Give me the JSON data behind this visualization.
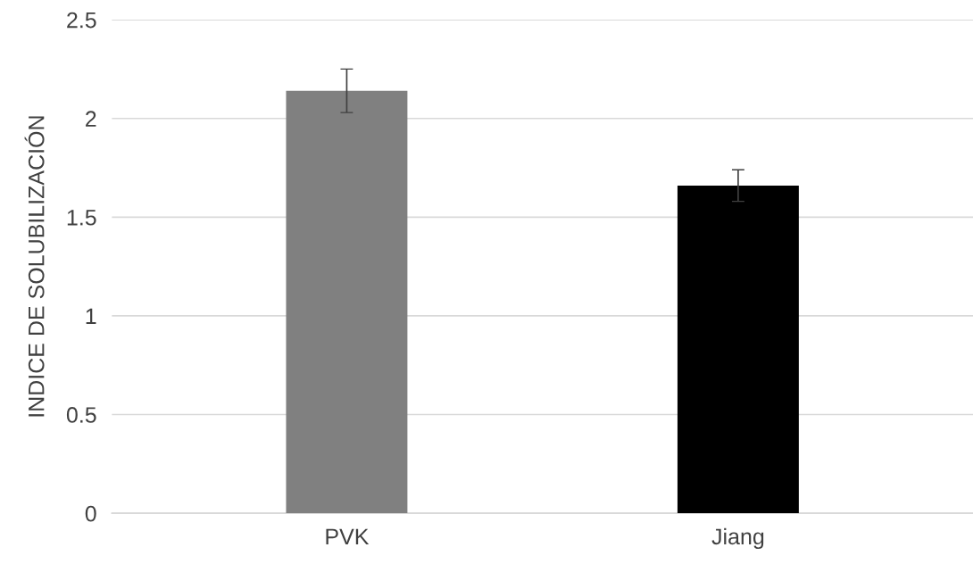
{
  "chart_data": {
    "type": "bar",
    "ylabel": "INDICE DE SOLUBILIZACIÓN",
    "categories": [
      "PVK",
      "Jiang"
    ],
    "values": [
      2.14,
      1.66
    ],
    "errors": [
      0.11,
      0.08
    ],
    "colors": [
      "#808080",
      "#000000"
    ],
    "ylim": [
      0,
      2.5
    ],
    "yticks": [
      0,
      0.5,
      1,
      1.5,
      2,
      2.5
    ],
    "grid": "y",
    "legend": false
  }
}
